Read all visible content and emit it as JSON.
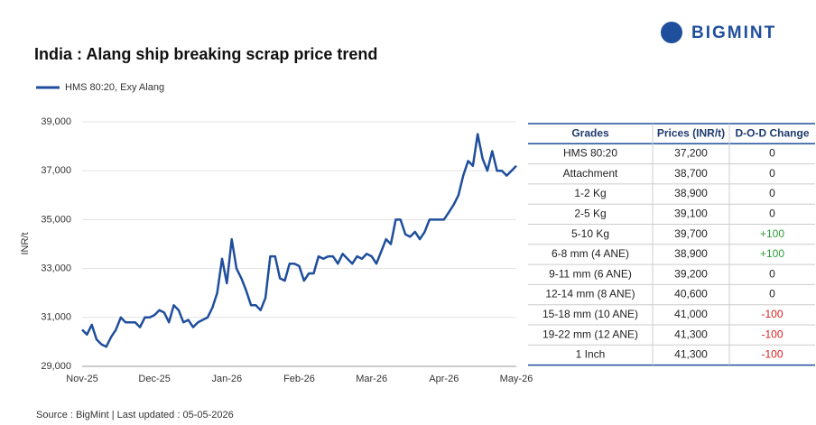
{
  "brand": "BIGMINT",
  "chart_data": {
    "type": "line",
    "title": "India : Alang ship breaking scrap price trend",
    "y_label": "INR/t",
    "source": "Source : BigMint | Last updated : 05-05-2026",
    "categories": [
      "Nov-25",
      null,
      null,
      null,
      null,
      null,
      null,
      null,
      null,
      null,
      null,
      null,
      null,
      null,
      null,
      "Dec-25",
      null,
      null,
      null,
      null,
      null,
      null,
      null,
      null,
      null,
      null,
      null,
      null,
      null,
      null,
      "Jan-26",
      null,
      null,
      null,
      null,
      null,
      null,
      null,
      null,
      null,
      null,
      null,
      null,
      null,
      null,
      "Feb-26",
      null,
      null,
      null,
      null,
      null,
      null,
      null,
      null,
      null,
      null,
      null,
      null,
      null,
      null,
      "Mar-26",
      null,
      null,
      null,
      null,
      null,
      null,
      null,
      null,
      null,
      null,
      null,
      null,
      null,
      null,
      "Apr-26",
      null,
      null,
      null,
      null,
      null,
      null,
      null,
      null,
      null,
      null,
      null,
      null,
      null,
      null,
      "May-26"
    ],
    "series": [
      {
        "name": "HMS 80:20, Exy Alang",
        "color": "#1f4e9c",
        "values": [
          30500,
          30300,
          30700,
          30100,
          29900,
          29800,
          30200,
          30500,
          31000,
          30800,
          30800,
          30800,
          30600,
          31000,
          31000,
          31100,
          31300,
          31200,
          30800,
          31500,
          31300,
          30800,
          30900,
          30600,
          30800,
          30900,
          31000,
          31400,
          32000,
          33400,
          32400,
          34200,
          33000,
          32600,
          32100,
          31500,
          31500,
          31300,
          31800,
          33500,
          33500,
          32600,
          32500,
          33200,
          33200,
          33100,
          32500,
          32800,
          32800,
          33500,
          33400,
          33500,
          33500,
          33200,
          33600,
          33400,
          33200,
          33500,
          33400,
          33600,
          33500,
          33200,
          33700,
          34200,
          34000,
          35000,
          35000,
          34400,
          34300,
          34500,
          34200,
          34500,
          35000,
          35000,
          35000,
          35000,
          35300,
          35600,
          36000,
          36800,
          37400,
          37200,
          38500,
          37500,
          37000,
          37800,
          37000,
          37000,
          36800,
          37000,
          37200
        ]
      }
    ],
    "ylim": [
      29000,
      39000
    ],
    "yticks": [
      {
        "value": 29000,
        "label": "29,000"
      },
      {
        "value": 31000,
        "label": "31,000"
      },
      {
        "value": 33000,
        "label": "33,000"
      },
      {
        "value": 35000,
        "label": "35,000"
      },
      {
        "value": 37000,
        "label": "37,000"
      },
      {
        "value": 39000,
        "label": "39,000"
      }
    ],
    "grid": true
  },
  "table": {
    "header": [
      "Grades",
      "Prices (INR/t)",
      "D-O-D Change"
    ],
    "rows": [
      [
        "HMS 80:20",
        "37,200",
        "0"
      ],
      [
        "Attachment",
        "38,700",
        "0"
      ],
      [
        "1-2 Kg",
        "38,900",
        "0"
      ],
      [
        "2-5 Kg",
        "39,100",
        "0"
      ],
      [
        "5-10 Kg",
        "39,700",
        "+100"
      ],
      [
        "6-8 mm (4 ANE)",
        "38,900",
        "+100"
      ],
      [
        "9-11 mm (6 ANE)",
        "39,200",
        "0"
      ],
      [
        "12-14 mm (8 ANE)",
        "40,600",
        "0"
      ],
      [
        "15-18 mm (10 ANE)",
        "41,000",
        "-100"
      ],
      [
        "19-22 mm (12 ANE)",
        "41,300",
        "-100"
      ],
      [
        "1 Inch",
        "41,300",
        "-100"
      ]
    ]
  }
}
